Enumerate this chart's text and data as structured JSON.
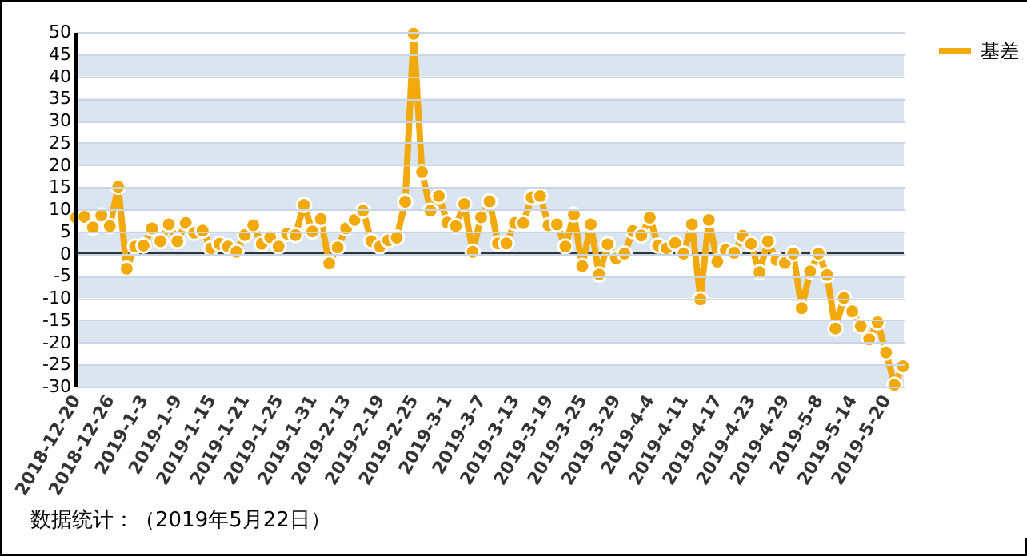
{
  "chart_data": {
    "type": "line",
    "categories": [
      "2018-12-20",
      null,
      null,
      null,
      "2018-12-26",
      null,
      null,
      null,
      "2019-1-3",
      null,
      null,
      null,
      "2019-1-9",
      null,
      null,
      null,
      "2019-1-15",
      null,
      null,
      null,
      "2019-1-21",
      null,
      null,
      null,
      "2019-1-25",
      null,
      null,
      null,
      "2019-1-31",
      null,
      null,
      null,
      "2019-2-13",
      null,
      null,
      null,
      "2019-2-19",
      null,
      null,
      null,
      "2019-2-25",
      null,
      null,
      null,
      "2019-3-1",
      null,
      null,
      null,
      "2019-3-7",
      null,
      null,
      null,
      "2019-3-13",
      null,
      null,
      null,
      "2019-3-19",
      null,
      null,
      null,
      "2019-3-25",
      null,
      null,
      null,
      "2019-3-29",
      null,
      null,
      null,
      "2019-4-4",
      null,
      null,
      null,
      "2019-4-11",
      null,
      null,
      null,
      "2019-4-17",
      null,
      null,
      null,
      "2019-4-23",
      null,
      null,
      null,
      "2019-4-29",
      null,
      null,
      null,
      "2019-5-8",
      null,
      null,
      null,
      "2019-5-14",
      null,
      null,
      null,
      "2019-5-20",
      null,
      null
    ],
    "series": [
      {
        "name": "基差",
        "color": "#f2a90c",
        "values": [
          8.1,
          8.3,
          5.9,
          8.6,
          6.2,
          15.1,
          -3.4,
          1.6,
          1.8,
          5.7,
          2.8,
          6.6,
          2.8,
          6.9,
          4.7,
          5.2,
          1.2,
          2.2,
          1.6,
          0.4,
          4.2,
          6.4,
          2.2,
          3.7,
          1.6,
          4.5,
          4.2,
          11.0,
          5.0,
          7.8,
          -2.2,
          1.4,
          5.7,
          7.6,
          9.7,
          2.8,
          1.6,
          3.0,
          3.6,
          11.7,
          49.6,
          18.4,
          9.7,
          13.0,
          7.0,
          6.2,
          11.2,
          0.4,
          8.2,
          11.8,
          2.3,
          2.3,
          6.9,
          6.9,
          12.7,
          13.0,
          6.4,
          6.6,
          1.6,
          8.8,
          -2.8,
          6.6,
          -4.7,
          2.1,
          -1.1,
          0,
          5.1,
          4.1,
          8.1,
          1.8,
          1.2,
          2.4,
          0,
          6.6,
          -10.3,
          7.6,
          -1.8,
          0.8,
          0.2,
          4.0,
          2.2,
          -4.2,
          2.8,
          -1.4,
          -2.1,
          0,
          -12.3,
          -4.0,
          0,
          -4.8,
          -16.9,
          -10.0,
          -13.0,
          -16.3,
          -19.3,
          -15.5,
          -22.3,
          -29.6,
          -25.4
        ]
      }
    ],
    "ylim": [
      -30,
      50
    ],
    "yticks": [
      -30,
      -25,
      -20,
      -15,
      -10,
      -5,
      0,
      5,
      10,
      15,
      20,
      25,
      30,
      35,
      40,
      45,
      50
    ],
    "grid": "y",
    "legend": "right",
    "marker": "circle",
    "line_style": "solid",
    "ref_lines": [
      {
        "axis": "y",
        "value": 0
      }
    ],
    "annotations": [
      "数据统计：（2019年5月22日）"
    ]
  }
}
